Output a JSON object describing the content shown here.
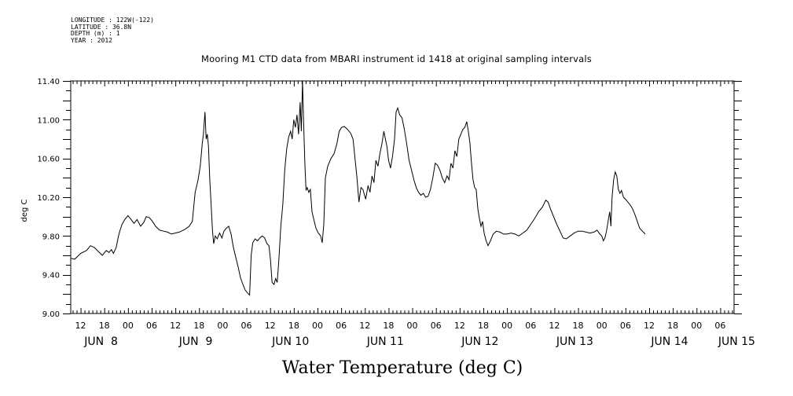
{
  "header": {
    "longitude": "LONGITUDE : 122W(-122)",
    "latitude": "LATITUDE : 36.8N",
    "depth": "DEPTH (m) : 1",
    "year": "YEAR : 2012"
  },
  "chart_data": {
    "type": "line",
    "title": "Mooring M1 CTD data from MBARI instrument id 1418 at original sampling intervals",
    "xlabel": "Water Temperature (deg C)",
    "ylabel": "deg C",
    "ylim": [
      9.0,
      11.4
    ],
    "yticks": [
      "9.00",
      "9.40",
      "9.80",
      "10.20",
      "10.60",
      "11.00",
      "11.40"
    ],
    "x_unit": "hours since 2012-06-08 00:00 UTC",
    "xlim": [
      9.5,
      177.5
    ],
    "hour_ticks": [
      {
        "x": 12,
        "label": "12"
      },
      {
        "x": 18,
        "label": "18"
      },
      {
        "x": 24,
        "label": "00"
      },
      {
        "x": 30,
        "label": "06"
      },
      {
        "x": 36,
        "label": "12"
      },
      {
        "x": 42,
        "label": "18"
      },
      {
        "x": 48,
        "label": "00"
      },
      {
        "x": 54,
        "label": "06"
      },
      {
        "x": 60,
        "label": "12"
      },
      {
        "x": 66,
        "label": "18"
      },
      {
        "x": 72,
        "label": "00"
      },
      {
        "x": 78,
        "label": "06"
      },
      {
        "x": 84,
        "label": "12"
      },
      {
        "x": 90,
        "label": "18"
      },
      {
        "x": 96,
        "label": "00"
      },
      {
        "x": 102,
        "label": "06"
      },
      {
        "x": 108,
        "label": "12"
      },
      {
        "x": 114,
        "label": "18"
      },
      {
        "x": 120,
        "label": "00"
      },
      {
        "x": 126,
        "label": "06"
      },
      {
        "x": 132,
        "label": "12"
      },
      {
        "x": 138,
        "label": "18"
      },
      {
        "x": 144,
        "label": "00"
      },
      {
        "x": 150,
        "label": "06"
      },
      {
        "x": 156,
        "label": "12"
      },
      {
        "x": 162,
        "label": "18"
      },
      {
        "x": 168,
        "label": "00"
      },
      {
        "x": 174,
        "label": "06"
      }
    ],
    "day_labels": [
      {
        "x": 12,
        "label": "JUN  8"
      },
      {
        "x": 36,
        "label": "JUN  9"
      },
      {
        "x": 60,
        "label": "JUN 10"
      },
      {
        "x": 84,
        "label": "JUN 11"
      },
      {
        "x": 108,
        "label": "JUN 12"
      },
      {
        "x": 132,
        "label": "JUN 13"
      },
      {
        "x": 156,
        "label": "JUN 14"
      },
      {
        "x": 173,
        "label": "JUN 15"
      }
    ],
    "series": [
      {
        "values": [
          [
            9.5,
            9.57
          ],
          [
            10.5,
            9.56
          ],
          [
            12,
            9.62
          ],
          [
            13.5,
            9.65
          ],
          [
            14.5,
            9.7
          ],
          [
            15.5,
            9.68
          ],
          [
            16.5,
            9.64
          ],
          [
            17.5,
            9.6
          ],
          [
            18.5,
            9.65
          ],
          [
            19.2,
            9.63
          ],
          [
            19.8,
            9.66
          ],
          [
            20.3,
            9.62
          ],
          [
            21,
            9.68
          ],
          [
            21.6,
            9.8
          ],
          [
            22,
            9.86
          ],
          [
            22.5,
            9.92
          ],
          [
            23.2,
            9.97
          ],
          [
            24,
            10.01
          ],
          [
            24.8,
            9.97
          ],
          [
            25.5,
            9.93
          ],
          [
            26.3,
            9.97
          ],
          [
            27.2,
            9.9
          ],
          [
            28,
            9.94
          ],
          [
            28.6,
            10.0
          ],
          [
            29.4,
            9.99
          ],
          [
            30.2,
            9.95
          ],
          [
            31,
            9.9
          ],
          [
            32,
            9.86
          ],
          [
            33,
            9.85
          ],
          [
            34,
            9.84
          ],
          [
            35,
            9.82
          ],
          [
            36,
            9.83
          ],
          [
            37,
            9.84
          ],
          [
            38.5,
            9.87
          ],
          [
            39.5,
            9.9
          ],
          [
            40.3,
            9.95
          ],
          [
            41,
            10.25
          ],
          [
            41.7,
            10.37
          ],
          [
            42.3,
            10.52
          ],
          [
            42.8,
            10.75
          ],
          [
            43.1,
            10.85
          ],
          [
            43.5,
            11.08
          ],
          [
            43.8,
            10.8
          ],
          [
            44.1,
            10.85
          ],
          [
            44.4,
            10.72
          ],
          [
            44.7,
            10.4
          ],
          [
            45.1,
            10.1
          ],
          [
            45.4,
            9.85
          ],
          [
            45.7,
            9.72
          ],
          [
            46.1,
            9.8
          ],
          [
            46.6,
            9.77
          ],
          [
            47.2,
            9.83
          ],
          [
            47.8,
            9.78
          ],
          [
            48.3,
            9.85
          ],
          [
            48.9,
            9.88
          ],
          [
            49.5,
            9.9
          ],
          [
            50.1,
            9.82
          ],
          [
            50.7,
            9.68
          ],
          [
            51.3,
            9.58
          ],
          [
            51.9,
            9.48
          ],
          [
            52.5,
            9.37
          ],
          [
            53.1,
            9.3
          ],
          [
            53.7,
            9.24
          ],
          [
            54.3,
            9.21
          ],
          [
            54.8,
            9.19
          ],
          [
            55.2,
            9.6
          ],
          [
            55.6,
            9.73
          ],
          [
            56.2,
            9.77
          ],
          [
            56.8,
            9.75
          ],
          [
            57.4,
            9.78
          ],
          [
            58,
            9.8
          ],
          [
            58.6,
            9.78
          ],
          [
            59.2,
            9.72
          ],
          [
            59.7,
            9.7
          ],
          [
            60.1,
            9.55
          ],
          [
            60.5,
            9.32
          ],
          [
            61,
            9.3
          ],
          [
            61.4,
            9.36
          ],
          [
            61.8,
            9.32
          ],
          [
            62.2,
            9.55
          ],
          [
            62.7,
            9.9
          ],
          [
            63.2,
            10.12
          ],
          [
            63.7,
            10.48
          ],
          [
            64.2,
            10.7
          ],
          [
            64.7,
            10.82
          ],
          [
            65.2,
            10.88
          ],
          [
            65.6,
            10.8
          ],
          [
            66,
            11.0
          ],
          [
            66.4,
            10.92
          ],
          [
            66.8,
            11.05
          ],
          [
            67.2,
            10.85
          ],
          [
            67.6,
            11.18
          ],
          [
            67.9,
            10.88
          ],
          [
            68.2,
            11.4
          ],
          [
            68.5,
            10.95
          ],
          [
            68.8,
            10.55
          ],
          [
            69.1,
            10.27
          ],
          [
            69.4,
            10.3
          ],
          [
            69.8,
            10.25
          ],
          [
            70.2,
            10.28
          ],
          [
            70.6,
            10.05
          ],
          [
            71,
            9.98
          ],
          [
            71.6,
            9.88
          ],
          [
            72.2,
            9.83
          ],
          [
            72.8,
            9.8
          ],
          [
            73.2,
            9.73
          ],
          [
            73.6,
            9.92
          ],
          [
            74,
            10.4
          ],
          [
            74.6,
            10.52
          ],
          [
            75.4,
            10.6
          ],
          [
            76.2,
            10.65
          ],
          [
            76.9,
            10.75
          ],
          [
            77.5,
            10.88
          ],
          [
            78.1,
            10.92
          ],
          [
            78.8,
            10.93
          ],
          [
            79.6,
            10.9
          ],
          [
            80.4,
            10.86
          ],
          [
            81,
            10.8
          ],
          [
            81.5,
            10.6
          ],
          [
            82,
            10.4
          ],
          [
            82.5,
            10.15
          ],
          [
            83,
            10.3
          ],
          [
            83.5,
            10.28
          ],
          [
            84.2,
            10.18
          ],
          [
            84.8,
            10.32
          ],
          [
            85.3,
            10.25
          ],
          [
            85.8,
            10.42
          ],
          [
            86.3,
            10.35
          ],
          [
            86.8,
            10.58
          ],
          [
            87.3,
            10.52
          ],
          [
            87.8,
            10.65
          ],
          [
            88.3,
            10.75
          ],
          [
            88.8,
            10.88
          ],
          [
            89.2,
            10.8
          ],
          [
            89.6,
            10.72
          ],
          [
            90,
            10.58
          ],
          [
            90.5,
            10.5
          ],
          [
            91,
            10.62
          ],
          [
            91.5,
            10.8
          ],
          [
            91.9,
            11.08
          ],
          [
            92.3,
            11.12
          ],
          [
            92.8,
            11.05
          ],
          [
            93.4,
            11.02
          ],
          [
            94,
            10.9
          ],
          [
            94.6,
            10.75
          ],
          [
            95.2,
            10.58
          ],
          [
            95.8,
            10.48
          ],
          [
            96.4,
            10.38
          ],
          [
            97,
            10.3
          ],
          [
            97.6,
            10.25
          ],
          [
            98.2,
            10.22
          ],
          [
            98.8,
            10.24
          ],
          [
            99.4,
            10.2
          ],
          [
            100,
            10.21
          ],
          [
            100.6,
            10.28
          ],
          [
            101.2,
            10.4
          ],
          [
            101.8,
            10.55
          ],
          [
            102.4,
            10.53
          ],
          [
            103,
            10.48
          ],
          [
            103.6,
            10.4
          ],
          [
            104.2,
            10.35
          ],
          [
            104.8,
            10.42
          ],
          [
            105.3,
            10.38
          ],
          [
            105.8,
            10.55
          ],
          [
            106.3,
            10.5
          ],
          [
            106.8,
            10.68
          ],
          [
            107.3,
            10.62
          ],
          [
            107.8,
            10.8
          ],
          [
            108.3,
            10.85
          ],
          [
            108.8,
            10.9
          ],
          [
            109.3,
            10.92
          ],
          [
            109.8,
            10.98
          ],
          [
            110.2,
            10.88
          ],
          [
            110.6,
            10.76
          ],
          [
            111,
            10.55
          ],
          [
            111.4,
            10.38
          ],
          [
            111.8,
            10.3
          ],
          [
            112.2,
            10.28
          ],
          [
            112.6,
            10.08
          ],
          [
            113,
            9.98
          ],
          [
            113.4,
            9.9
          ],
          [
            113.8,
            9.95
          ],
          [
            114.2,
            9.83
          ],
          [
            114.7,
            9.75
          ],
          [
            115.2,
            9.7
          ],
          [
            115.8,
            9.75
          ],
          [
            116.5,
            9.82
          ],
          [
            117.3,
            9.85
          ],
          [
            118.2,
            9.84
          ],
          [
            119.1,
            9.82
          ],
          [
            120,
            9.82
          ],
          [
            121,
            9.83
          ],
          [
            122,
            9.82
          ],
          [
            123,
            9.8
          ],
          [
            124,
            9.83
          ],
          [
            125,
            9.86
          ],
          [
            126,
            9.92
          ],
          [
            127,
            9.98
          ],
          [
            128,
            10.05
          ],
          [
            129,
            10.1
          ],
          [
            129.8,
            10.17
          ],
          [
            130.4,
            10.15
          ],
          [
            131,
            10.08
          ],
          [
            131.8,
            10.0
          ],
          [
            132.6,
            9.92
          ],
          [
            133.4,
            9.85
          ],
          [
            134.2,
            9.78
          ],
          [
            135,
            9.77
          ],
          [
            136,
            9.8
          ],
          [
            137,
            9.83
          ],
          [
            138,
            9.85
          ],
          [
            139,
            9.85
          ],
          [
            140,
            9.84
          ],
          [
            141,
            9.83
          ],
          [
            142,
            9.84
          ],
          [
            142.8,
            9.86
          ],
          [
            143.5,
            9.82
          ],
          [
            144,
            9.8
          ],
          [
            144.4,
            9.75
          ],
          [
            144.8,
            9.78
          ],
          [
            145.2,
            9.85
          ],
          [
            145.6,
            9.95
          ],
          [
            146,
            10.05
          ],
          [
            146.3,
            9.9
          ],
          [
            146.6,
            10.2
          ],
          [
            147,
            10.38
          ],
          [
            147.4,
            10.46
          ],
          [
            147.8,
            10.42
          ],
          [
            148.2,
            10.28
          ],
          [
            148.6,
            10.24
          ],
          [
            149,
            10.27
          ],
          [
            149.5,
            10.2
          ],
          [
            150,
            10.18
          ],
          [
            150.6,
            10.15
          ],
          [
            151.2,
            10.12
          ],
          [
            151.8,
            10.08
          ],
          [
            152.4,
            10.02
          ],
          [
            153,
            9.95
          ],
          [
            153.6,
            9.88
          ],
          [
            154.3,
            9.85
          ],
          [
            155,
            9.82
          ]
        ]
      }
    ]
  }
}
